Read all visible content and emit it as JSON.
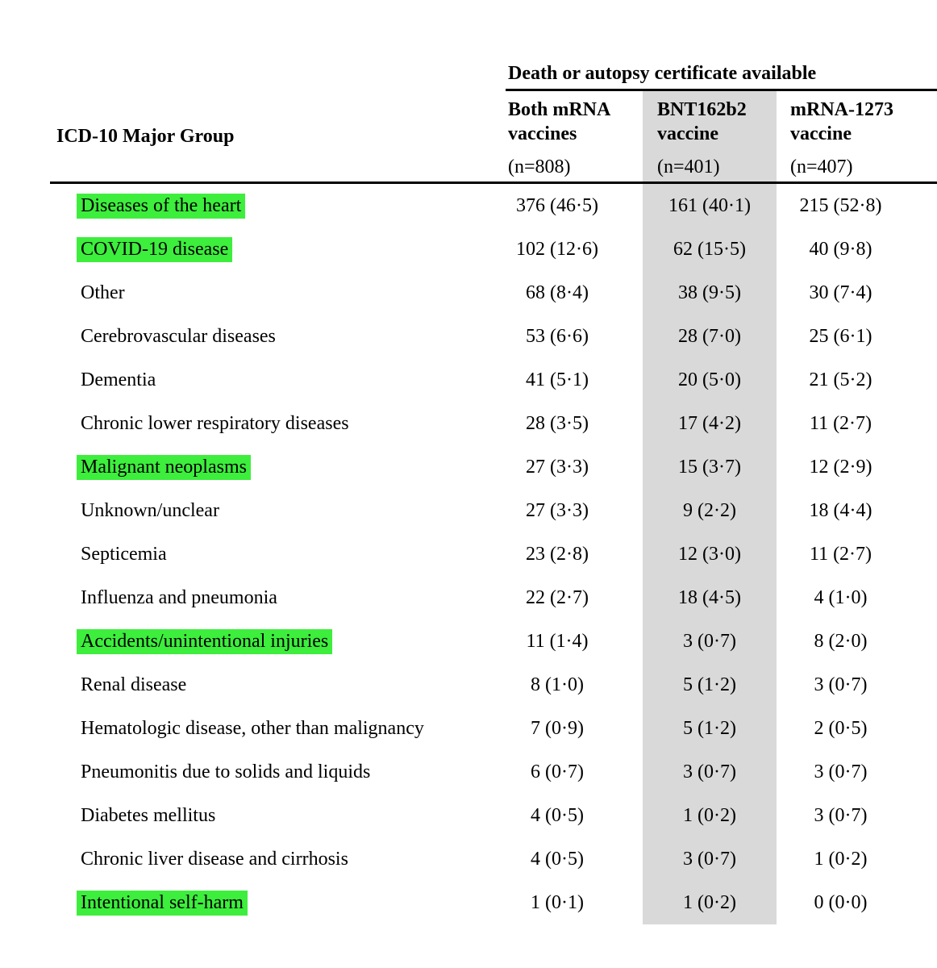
{
  "table": {
    "spanner_heading": "Death or autopsy certificate available",
    "row_group_header": "ICD-10 Major Group",
    "columns": [
      {
        "name": "Both mRNA\nvaccines",
        "n_label": "(n=808)"
      },
      {
        "name": "BNT162b2\nvaccine",
        "n_label": "(n=401)"
      },
      {
        "name": "mRNA-1273\nvaccine",
        "n_label": "(n=407)"
      }
    ],
    "rows": [
      {
        "label": "Diseases of the heart",
        "highlight": true,
        "values": [
          "376 (46·5)",
          "161 (40·1)",
          "215 (52·8)"
        ]
      },
      {
        "label": "COVID-19 disease",
        "highlight": true,
        "values": [
          "102 (12·6)",
          "62 (15·5)",
          "40 (9·8)"
        ]
      },
      {
        "label": "Other",
        "highlight": false,
        "values": [
          "68 (8·4)",
          "38 (9·5)",
          "30 (7·4)"
        ]
      },
      {
        "label": "Cerebrovascular diseases",
        "highlight": false,
        "values": [
          "53 (6·6)",
          "28 (7·0)",
          "25 (6·1)"
        ]
      },
      {
        "label": "Dementia",
        "highlight": false,
        "values": [
          "41 (5·1)",
          "20 (5·0)",
          "21 (5·2)"
        ]
      },
      {
        "label": "Chronic lower respiratory diseases",
        "highlight": false,
        "values": [
          "28 (3·5)",
          "17 (4·2)",
          "11 (2·7)"
        ]
      },
      {
        "label": "Malignant neoplasms",
        "highlight": true,
        "values": [
          "27 (3·3)",
          "15 (3·7)",
          "12 (2·9)"
        ]
      },
      {
        "label": "Unknown/unclear",
        "highlight": false,
        "values": [
          "27 (3·3)",
          "9 (2·2)",
          "18 (4·4)"
        ]
      },
      {
        "label": "Septicemia",
        "highlight": false,
        "values": [
          "23 (2·8)",
          "12 (3·0)",
          "11 (2·7)"
        ]
      },
      {
        "label": "Influenza and pneumonia",
        "highlight": false,
        "values": [
          "22 (2·7)",
          "18 (4·5)",
          "4 (1·0)"
        ]
      },
      {
        "label": "Accidents/unintentional injuries",
        "highlight": true,
        "values": [
          "11 (1·4)",
          "3 (0·7)",
          "8 (2·0)"
        ]
      },
      {
        "label": "Renal disease",
        "highlight": false,
        "values": [
          "8 (1·0)",
          "5 (1·2)",
          "3 (0·7)"
        ]
      },
      {
        "label": "Hematologic disease, other than malignancy",
        "highlight": false,
        "values": [
          "7 (0·9)",
          "5 (1·2)",
          "2 (0·5)"
        ]
      },
      {
        "label": "Pneumonitis due to solids and liquids",
        "highlight": false,
        "values": [
          "6 (0·7)",
          "3 (0·7)",
          "3 (0·7)"
        ]
      },
      {
        "label": "Diabetes mellitus",
        "highlight": false,
        "values": [
          "4 (0·5)",
          "1 (0·2)",
          "3 (0·7)"
        ]
      },
      {
        "label": "Chronic liver disease and cirrhosis",
        "highlight": false,
        "values": [
          "4 (0·5)",
          "3 (0·7)",
          "1 (0·2)"
        ]
      },
      {
        "label": "Intentional self-harm",
        "highlight": true,
        "values": [
          "1 (0·1)",
          "1 (0·2)",
          "0 (0·0)"
        ]
      }
    ]
  },
  "colors": {
    "highlight_green": "#3dee3d",
    "column_shade_gray": "#d9d9d9",
    "rule_black": "#000000"
  }
}
